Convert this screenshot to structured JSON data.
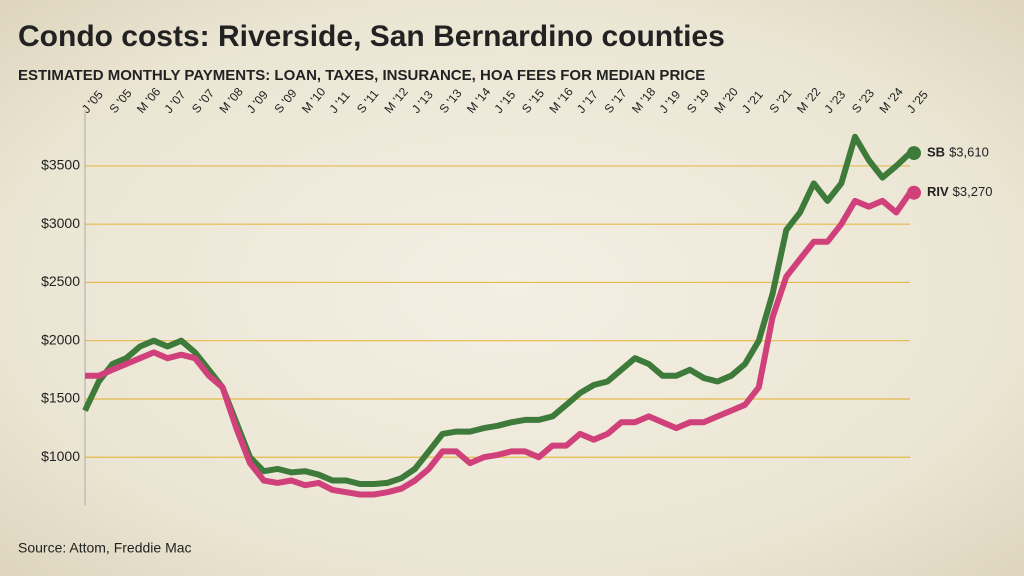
{
  "chart_data": {
    "type": "line",
    "title": "Condo costs: Riverside, San Bernardino counties",
    "subtitle": "ESTIMATED MONTHLY PAYMENTS: LOAN, TAXES, INSURANCE, HOA FEES FOR MEDIAN PRICE",
    "source": "Source: Attom, Freddie Mac",
    "categories": [
      "J '05",
      null,
      "S '05",
      null,
      "M '06",
      null,
      "J '07",
      null,
      "S '07",
      null,
      "M '08",
      null,
      "J '09",
      null,
      "S '09",
      null,
      "M '10",
      null,
      "J '11",
      null,
      "S '11",
      null,
      "M '12",
      null,
      "J '13",
      null,
      "S '13",
      null,
      "M '14",
      null,
      "J '15",
      null,
      "S '15",
      null,
      "M '16",
      null,
      "J '17",
      null,
      "S '17",
      null,
      "M '18",
      null,
      "J '19",
      null,
      "S '19",
      null,
      "M '20",
      null,
      "J '21",
      null,
      "S '21",
      null,
      "M '22",
      null,
      "J '23",
      null,
      "S '23",
      null,
      "M '24",
      null,
      "J '25"
    ],
    "series": [
      {
        "name": "SB",
        "color": "#3e7a3a",
        "values": [
          1400,
          1650,
          1800,
          1850,
          1950,
          2000,
          1950,
          2000,
          1900,
          1750,
          1600,
          1300,
          1000,
          880,
          900,
          870,
          880,
          850,
          800,
          800,
          770,
          770,
          780,
          820,
          900,
          1050,
          1200,
          1220,
          1220,
          1250,
          1270,
          1300,
          1320,
          1320,
          1350,
          1450,
          1550,
          1620,
          1650,
          1750,
          1850,
          1800,
          1700,
          1700,
          1750,
          1680,
          1650,
          1700,
          1800,
          2000,
          2400,
          2950,
          3100,
          3350,
          3200,
          3350,
          3750,
          3550,
          3400,
          3500,
          3610
        ],
        "value_labels": [
          null,
          null,
          null,
          null,
          null,
          null,
          null,
          null,
          null,
          null,
          null,
          null,
          null,
          null,
          null,
          null,
          null,
          null,
          null,
          null,
          null,
          null,
          null,
          null,
          null,
          null,
          null,
          null,
          null,
          null,
          null,
          null,
          null,
          null,
          null,
          null,
          null,
          null,
          null,
          null,
          null,
          null,
          null,
          null,
          null,
          null,
          null,
          null,
          null,
          null,
          null,
          null,
          null,
          null,
          null,
          null,
          null,
          null,
          null,
          null,
          "$3,610"
        ]
      },
      {
        "name": "RIV",
        "color": "#d0407a",
        "values": [
          1700,
          1700,
          1750,
          1800,
          1850,
          1900,
          1850,
          1880,
          1850,
          1700,
          1600,
          1250,
          950,
          800,
          780,
          800,
          760,
          780,
          720,
          700,
          680,
          680,
          700,
          730,
          800,
          900,
          1050,
          1050,
          950,
          1000,
          1020,
          1050,
          1050,
          1000,
          1100,
          1100,
          1200,
          1150,
          1200,
          1300,
          1300,
          1350,
          1300,
          1250,
          1300,
          1300,
          1350,
          1400,
          1450,
          1600,
          2200,
          2550,
          2700,
          2850,
          2850,
          3000,
          3200,
          3150,
          3200,
          3100,
          3270
        ],
        "value_labels": [
          null,
          null,
          null,
          null,
          null,
          null,
          null,
          null,
          null,
          null,
          null,
          null,
          null,
          null,
          null,
          null,
          null,
          null,
          null,
          null,
          null,
          null,
          null,
          null,
          null,
          null,
          null,
          null,
          null,
          null,
          null,
          null,
          null,
          null,
          null,
          null,
          null,
          null,
          null,
          null,
          null,
          null,
          null,
          null,
          null,
          null,
          null,
          null,
          null,
          null,
          null,
          null,
          null,
          null,
          null,
          null,
          null,
          null,
          null,
          null,
          "$3,270"
        ]
      }
    ],
    "ylim": [
      590,
      3980
    ],
    "yticks": [
      {
        "value": 1000,
        "label": "$1000"
      },
      {
        "value": 1500,
        "label": "$1500"
      },
      {
        "value": 2000,
        "label": "$2000"
      },
      {
        "value": 2500,
        "label": "$2500"
      },
      {
        "value": 3000,
        "label": "$3000"
      },
      {
        "value": 3500,
        "label": "$3500"
      }
    ],
    "grid": true,
    "grid_color": "#e3bb4c"
  }
}
